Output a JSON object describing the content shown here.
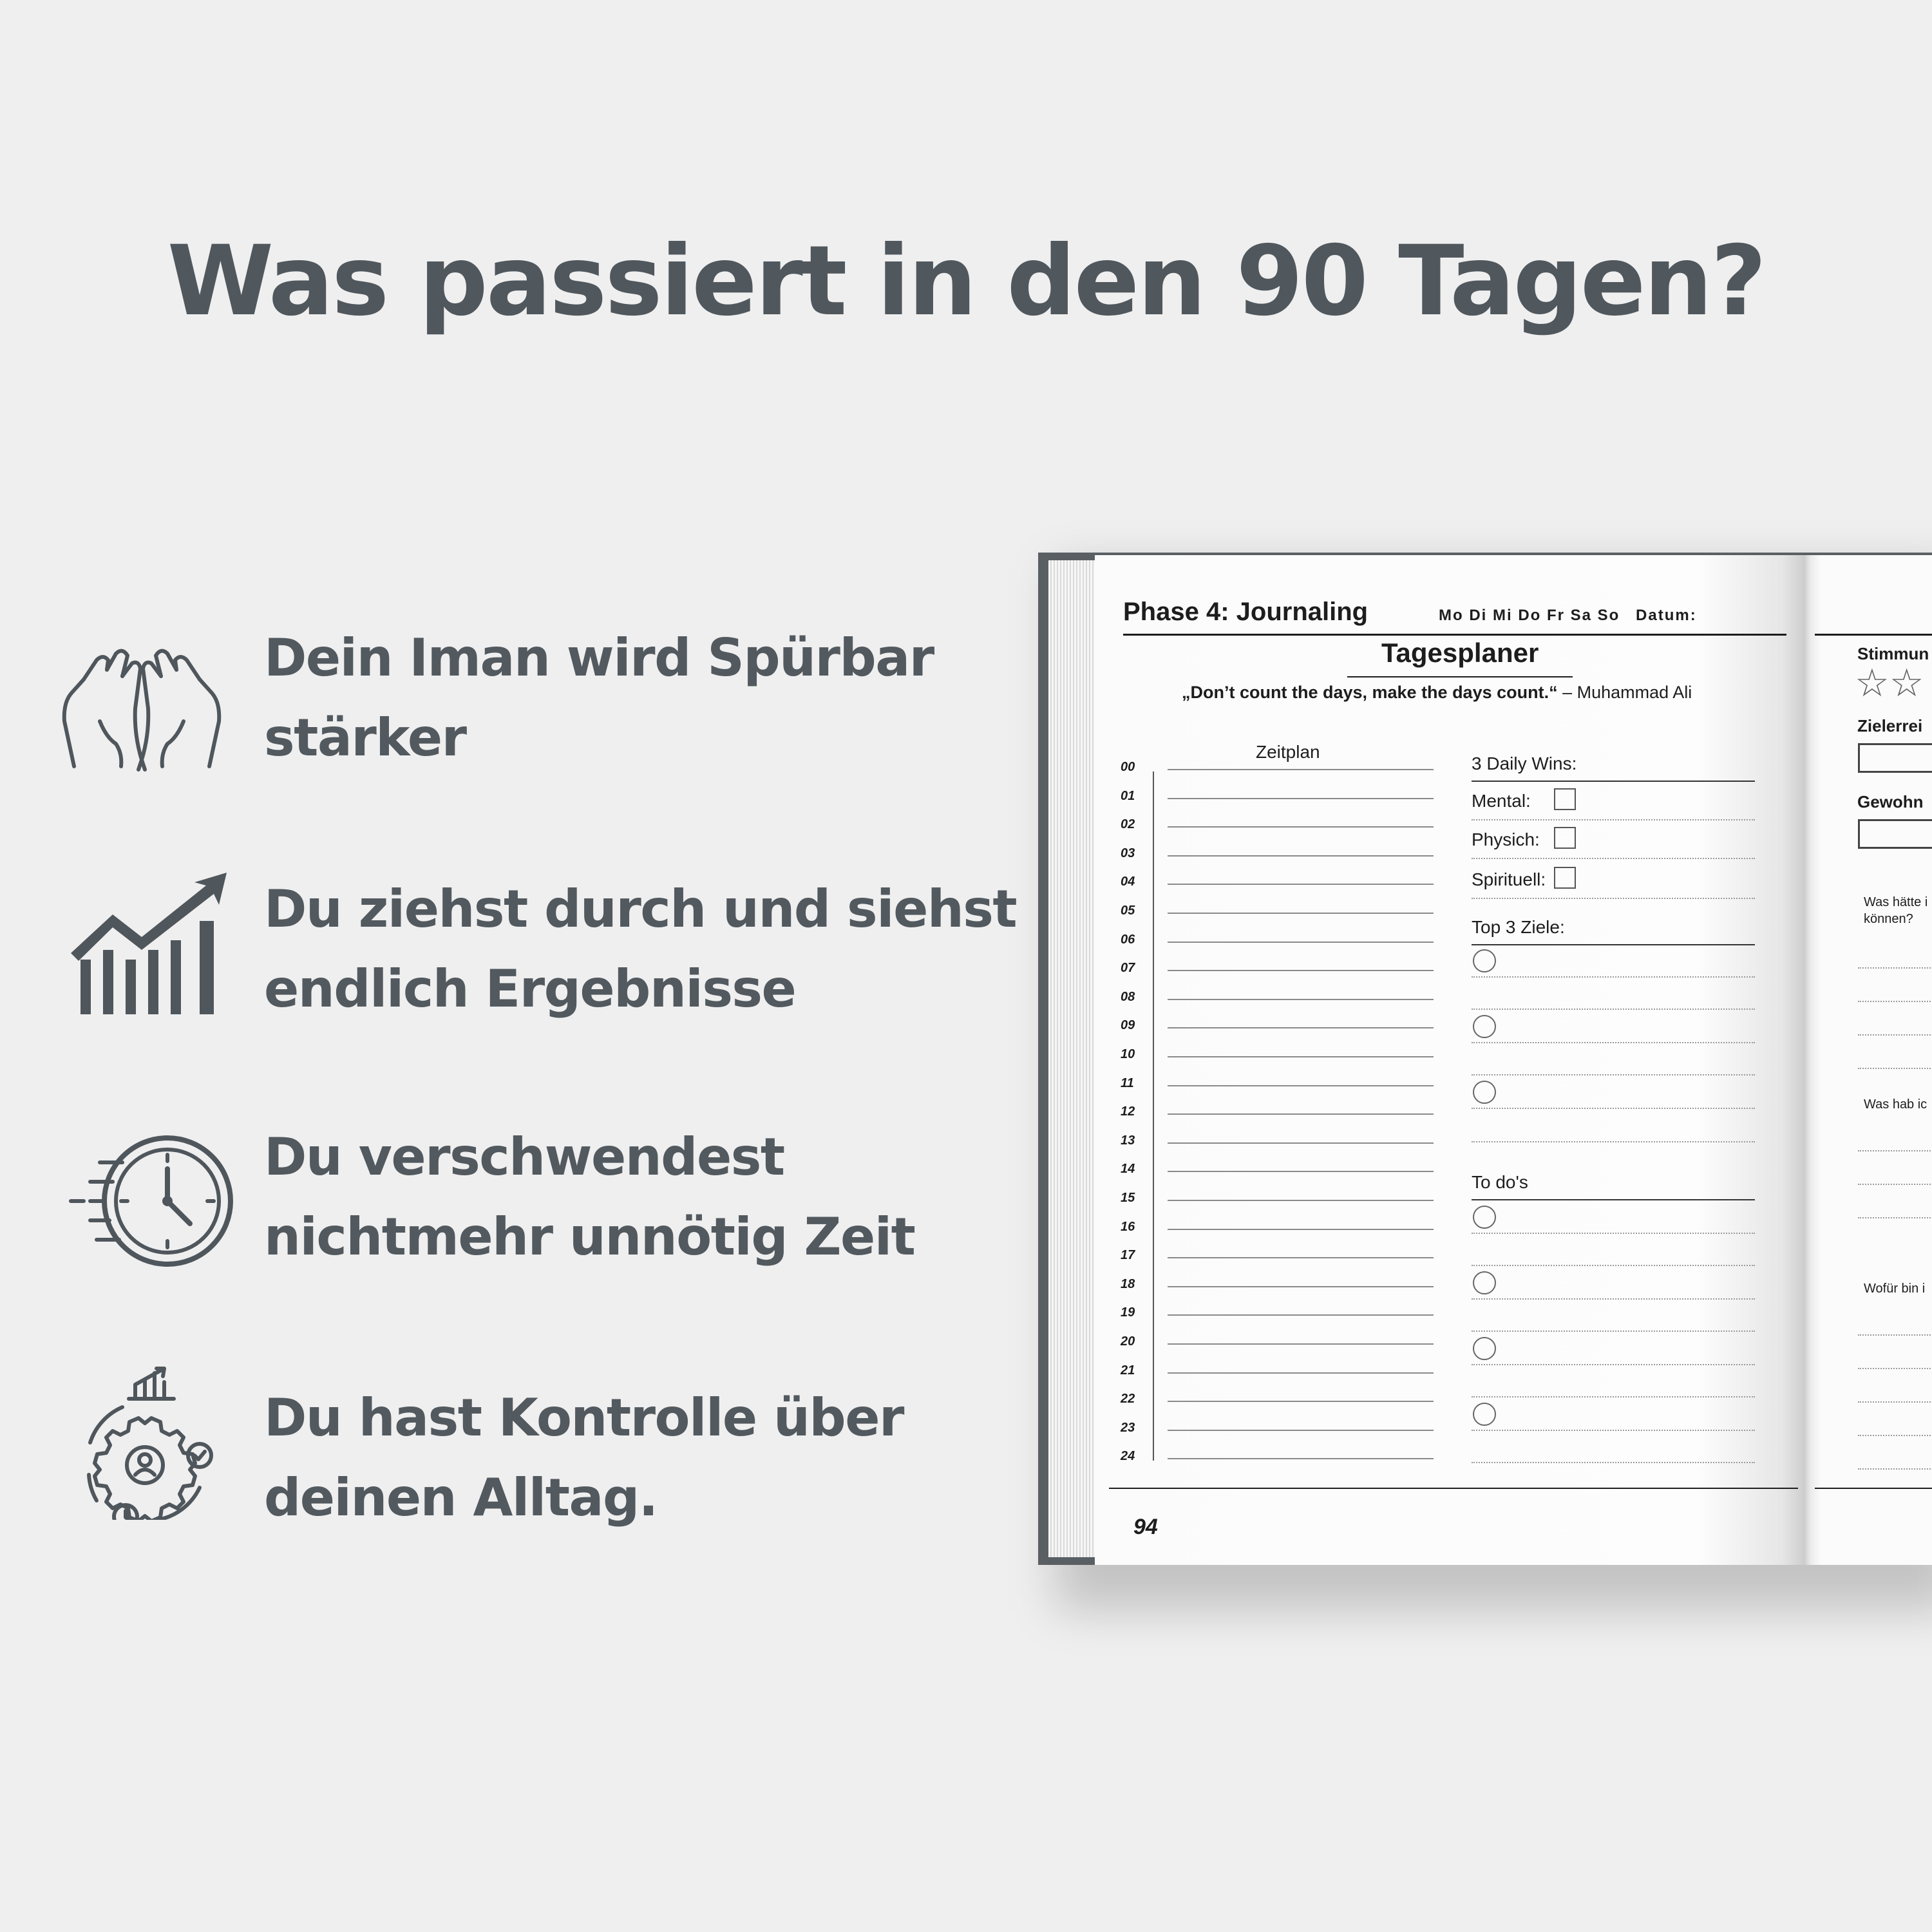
{
  "headline": "Was passiert in den 90 Tagen?",
  "features": [
    {
      "icon": "praying-hands-icon",
      "line1": "Dein Iman wird Spürbar",
      "line2": "stärker"
    },
    {
      "icon": "growth-chart-icon",
      "line1": "Du ziehst durch und siehst",
      "line2": "endlich Ergebnisse"
    },
    {
      "icon": "fast-clock-icon",
      "line1": "Du verschwendest",
      "line2": "nichtmehr unnötig Zeit"
    },
    {
      "icon": "gear-control-icon",
      "line1": "Du hast Kontrolle über",
      "line2": "deinen Alltag."
    }
  ],
  "book": {
    "left_page": {
      "phase_title": "Phase 4: Journaling",
      "days": "Mo Di Mi Do Fr Sa So",
      "date_label": "Datum:",
      "planner_title": "Tagesplaner",
      "quote": "„Don’t count the days, make the days count.“",
      "quote_author": "– Muhammad Ali",
      "schedule_title": "Zeitplan",
      "hours": [
        "00",
        "01",
        "02",
        "03",
        "04",
        "05",
        "06",
        "07",
        "08",
        "09",
        "10",
        "11",
        "12",
        "13",
        "14",
        "15",
        "16",
        "17",
        "18",
        "19",
        "20",
        "21",
        "22",
        "23",
        "24"
      ],
      "wins_title": "3 Daily Wins:",
      "wins": [
        "Mental:",
        "Physich:",
        "Spirituell:"
      ],
      "goals_title": "Top 3 Ziele:",
      "todos_title": "To do's",
      "page_number": "94"
    },
    "right_page": {
      "labels": [
        "Stimmun",
        "Zielerrei",
        "Gewohn"
      ],
      "questions": [
        "Was hätte i",
        "können?",
        "Was hab ic",
        "Wofür bin i"
      ]
    }
  }
}
